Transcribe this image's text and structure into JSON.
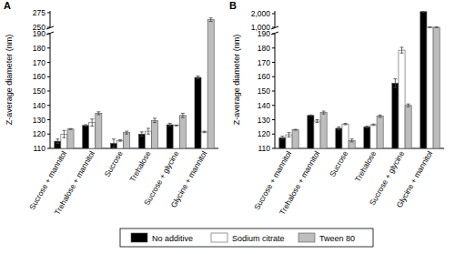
{
  "chart_data": [
    {
      "type": "bar",
      "title": "A",
      "y_label": "Z-average diameter (nm)",
      "categories": [
        "Sucrose + mannitol",
        "Trehalose + mannitol",
        "Sucrose",
        "Trehalose",
        "Sucrose + glycine",
        "Glycine + mannitol"
      ],
      "series": [
        {
          "name": "No additive",
          "color": "#000000",
          "values": [
            115,
            126,
            113.5,
            120,
            126.5,
            159.5
          ],
          "errors": [
            1.5,
            0.5,
            3,
            1.5,
            1,
            1
          ]
        },
        {
          "name": "Sodium citrate",
          "color": "#ffffff",
          "values": [
            120,
            128,
            115.5,
            122,
            126,
            121.5
          ],
          "errors": [
            2.5,
            2.5,
            0.5,
            2,
            0.3,
            0.5
          ]
        },
        {
          "name": "Tween 80",
          "color": "#bdbdbd",
          "values": [
            123.5,
            134.5,
            121,
            129.5,
            133,
            263
          ],
          "errors": [
            0.3,
            1,
            1,
            1.5,
            1.5,
            3
          ]
        }
      ],
      "ylim": [
        110,
        278
      ],
      "yticks": [
        110,
        120,
        130,
        140,
        150,
        160,
        170,
        180,
        190,
        250,
        275
      ]
    },
    {
      "type": "bar",
      "title": "B",
      "y_label": "Z-average diameter (nm)",
      "categories": [
        "Sucrose + mannitol",
        "Trehalose + mannitol",
        "Sucrose",
        "Trehalose",
        "Sucrose + glycine",
        "Glycine + mannitol"
      ],
      "series": [
        {
          "name": "No additive",
          "color": "#000000",
          "values": [
            117.5,
            133,
            124,
            125,
            155.5,
            2150
          ],
          "errors": [
            1,
            0.3,
            1,
            0.5,
            3,
            50
          ]
        },
        {
          "name": "Sodium citrate",
          "color": "#ffffff",
          "values": [
            119.5,
            129,
            127,
            126.5,
            178.5,
            1000
          ],
          "errors": [
            1.5,
            1,
            0.5,
            0.5,
            2,
            20
          ]
        },
        {
          "name": "Tween 80",
          "color": "#bdbdbd",
          "values": [
            123,
            135,
            115.5,
            132.5,
            140,
            1000
          ],
          "errors": [
            0.3,
            1,
            1,
            0.8,
            1,
            20
          ]
        }
      ],
      "ylim": [
        110,
        2200
      ],
      "yticks": [
        110,
        120,
        130,
        140,
        150,
        160,
        170,
        180,
        190,
        {
          "value": 1000,
          "label": "1,000"
        },
        {
          "value": 2000,
          "label": "2,000"
        }
      ]
    }
  ]
}
